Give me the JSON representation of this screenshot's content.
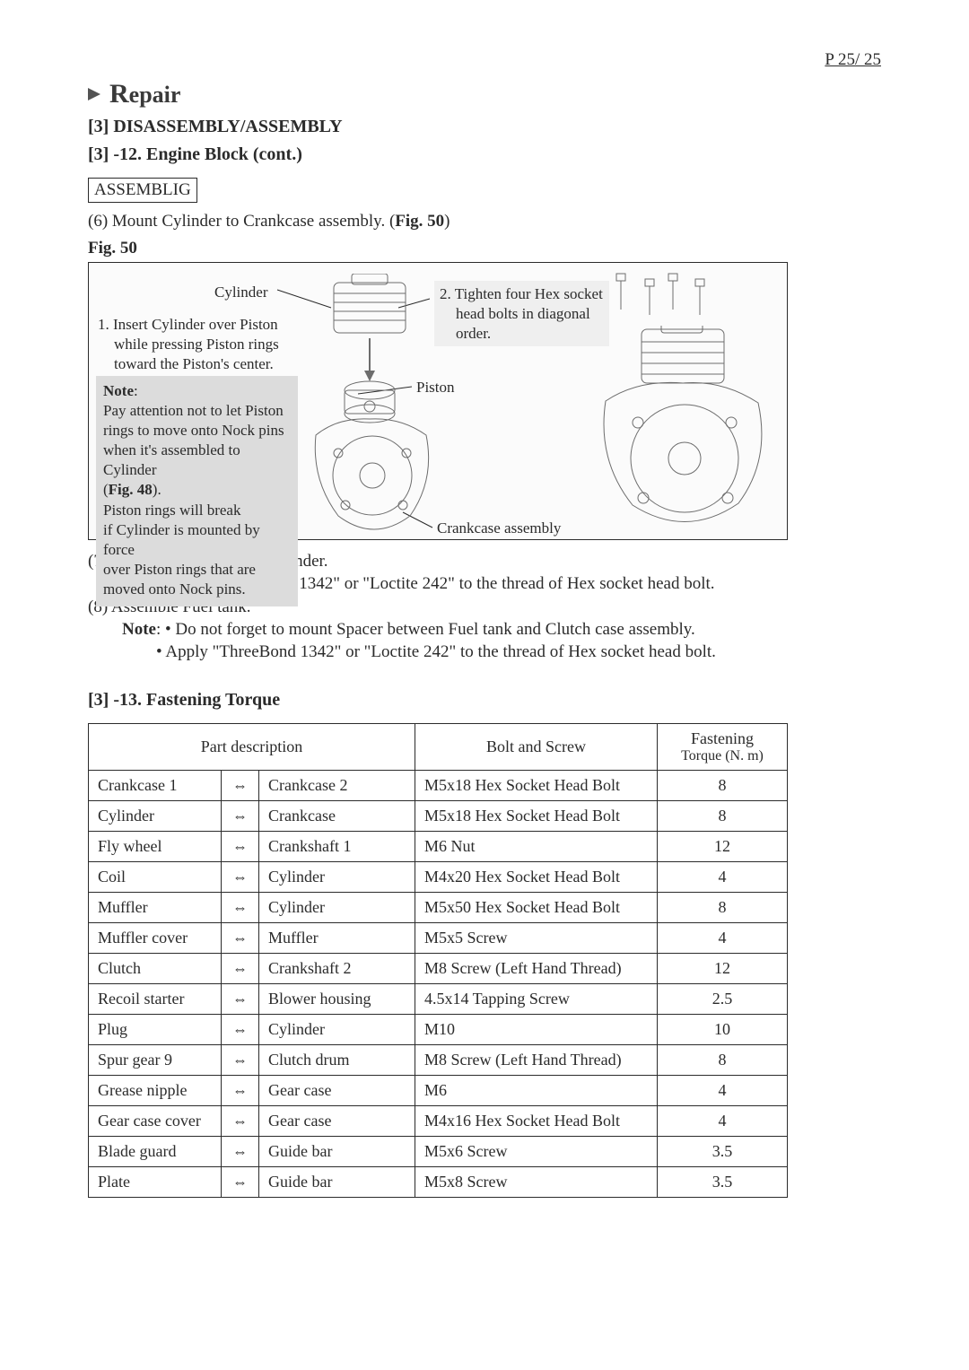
{
  "page_number": "P 25/ 25",
  "section_title": "Repair",
  "subheading1": "[3] DISASSEMBLY/ASSEMBLY",
  "subheading2": "[3] -12. Engine Block (cont.)",
  "assembling_box": "ASSEMBLIG",
  "step6_pre": "(6) Mount Cylinder to Crankcase assembly. (",
  "step6_fig": "Fig. 50",
  "step6_post": ")",
  "fig50_caption": "Fig. 50",
  "figure": {
    "label_cylinder": "Cylinder",
    "label_piston": "Piston",
    "label_crankcase": "Crankcase assembly",
    "callout1_num": "1. ",
    "callout1_l1": "Insert Cylinder over Piston",
    "callout1_l2": "while pressing Piston rings",
    "callout1_l3": "toward the Piston's center.",
    "callout2_num": "2. ",
    "callout2_l1": "Tighten four Hex socket",
    "callout2_l2": "head bolts in diagonal",
    "callout2_l3": "order.",
    "note_title": "Note",
    "note_l1": "Pay attention not to let Piston",
    "note_l2": "rings to move onto Nock pins",
    "note_l3": "when it's assembled to Cylinder",
    "note_ref_pre": "(",
    "note_ref": "Fig. 48",
    "note_ref_post": ").",
    "note_l5": "Piston rings will break",
    "note_l6": "if Cylinder is mounted by force",
    "note_l7": "over Piston rings that are",
    "note_l8": "moved onto Nock pins."
  },
  "after": {
    "step7": "(7) Assemble Insulator to Cylinder.",
    "step7_note_lead": "Note",
    "step7_note": ": Apply \"ThreeBond 1342\" or \"Loctite 242\" to the thread of Hex socket head bolt.",
    "step8": "(8) Assemble Fuel tank.",
    "step8_note_lead": "Note",
    "step8_note1": ": • Do not forget to mount Spacer between Fuel tank and Clutch case assembly.",
    "step8_note2": "• Apply \"ThreeBond 1342\" or \"Loctite 242\" to the thread of Hex socket head bolt."
  },
  "torque_heading": "[3] -13. Fastening Torque",
  "torque_table": {
    "header_part": "Part description",
    "header_bolt": "Bolt and Screw",
    "header_tq1": "Fastening",
    "header_tq2": "Torque (N. m)",
    "arrow_glyph": "⇔",
    "rows": [
      {
        "a": "Crankcase 1",
        "b": "Crankcase 2",
        "bolt": "M5x18 Hex Socket Head Bolt",
        "tq": "8"
      },
      {
        "a": "Cylinder",
        "b": "Crankcase",
        "bolt": "M5x18 Hex Socket Head Bolt",
        "tq": "8"
      },
      {
        "a": "Fly wheel",
        "b": "Crankshaft 1",
        "bolt": "M6  Nut",
        "tq": "12"
      },
      {
        "a": "Coil",
        "b": "Cylinder",
        "bolt": "M4x20 Hex Socket Head Bolt",
        "tq": "4"
      },
      {
        "a": "Muffler",
        "b": "Cylinder",
        "bolt": "M5x50 Hex Socket Head Bolt",
        "tq": "8"
      },
      {
        "a": "Muffler cover",
        "b": "Muffler",
        "bolt": "M5x5 Screw",
        "tq": "4"
      },
      {
        "a": "Clutch",
        "b": "Crankshaft 2",
        "bolt": "M8 Screw (Left Hand Thread)",
        "tq": "12"
      },
      {
        "a": "Recoil starter",
        "b": "Blower housing",
        "bolt": "4.5x14 Tapping Screw",
        "tq": "2.5"
      },
      {
        "a": "Plug",
        "b": "Cylinder",
        "bolt": "M10",
        "tq": "10"
      },
      {
        "a": "Spur gear 9",
        "b": "Clutch drum",
        "bolt": "M8 Screw (Left Hand Thread)",
        "tq": "8"
      },
      {
        "a": "Grease nipple",
        "b": "Gear case",
        "bolt": "M6",
        "tq": "4"
      },
      {
        "a": "Gear case cover",
        "b": "Gear case",
        "bolt": "M4x16 Hex Socket Head Bolt",
        "tq": "4"
      },
      {
        "a": "Blade guard",
        "b": "Guide bar",
        "bolt": "M5x6 Screw",
        "tq": "3.5"
      },
      {
        "a": "Plate",
        "b": "Guide bar",
        "bolt": "M5x8 Screw",
        "tq": "3.5"
      }
    ]
  }
}
